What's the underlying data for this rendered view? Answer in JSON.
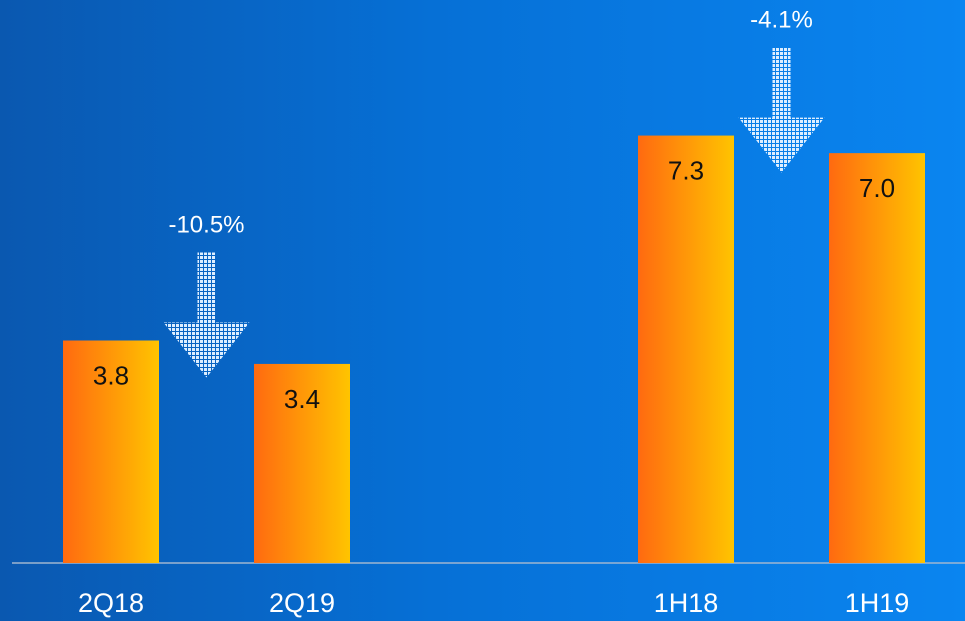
{
  "chart_data": {
    "type": "bar",
    "categories": [
      "2Q18",
      "2Q19",
      "1H18",
      "1H19"
    ],
    "values": [
      3.8,
      3.4,
      7.3,
      7.0
    ],
    "value_labels": [
      "3.8",
      "3.4",
      "7.3",
      "7.0"
    ],
    "changes": [
      {
        "from": "2Q18",
        "to": "2Q19",
        "label": "-10.5%",
        "direction": "down"
      },
      {
        "from": "1H18",
        "to": "1H19",
        "label": "-4.1%",
        "direction": "down"
      }
    ],
    "title": "",
    "xlabel": "",
    "ylabel": "",
    "ylim": [
      0,
      7.6
    ],
    "grid": false,
    "legend": "none",
    "colors": {
      "bar_start": "#ff6a10",
      "bar_end": "#ffc400",
      "arrow": "#ddeeff",
      "axis": "#9fb6d0",
      "label_text": "#111111",
      "tick_text": "#ffffff"
    }
  }
}
